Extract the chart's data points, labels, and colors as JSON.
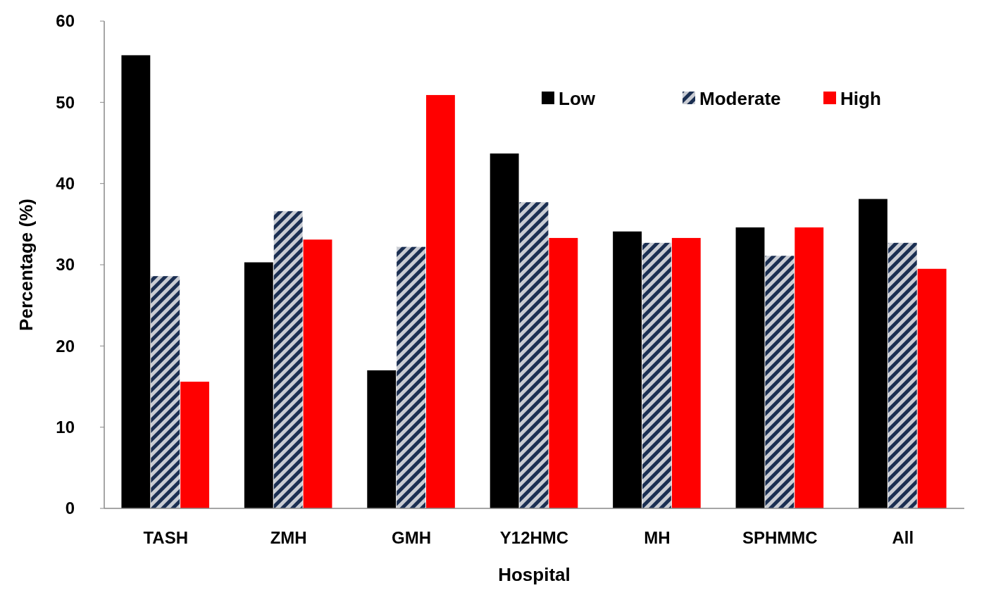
{
  "chart_data": {
    "type": "bar",
    "xlabel": "Hospital",
    "ylabel": "Percentage (%)",
    "categories": [
      "TASH",
      "ZMH",
      "GMH",
      "Y12HMC",
      "MH",
      "SPHMMC",
      "All"
    ],
    "series": [
      {
        "name": "Low",
        "color": "#000000",
        "values": [
          55.8,
          30.3,
          17.0,
          43.7,
          34.1,
          34.6,
          38.1
        ]
      },
      {
        "name": "Moderate",
        "color": "#1b2f52",
        "values": [
          28.6,
          36.6,
          32.2,
          37.7,
          32.7,
          31.1,
          32.7
        ]
      },
      {
        "name": "High",
        "color": "#ff0000",
        "values": [
          15.6,
          33.1,
          50.9,
          33.3,
          33.3,
          34.6,
          29.5
        ]
      }
    ],
    "ylim": [
      0,
      60
    ],
    "yticks": [
      0,
      10,
      20,
      30,
      40,
      50,
      60
    ],
    "grid": false,
    "legend": "top right"
  }
}
